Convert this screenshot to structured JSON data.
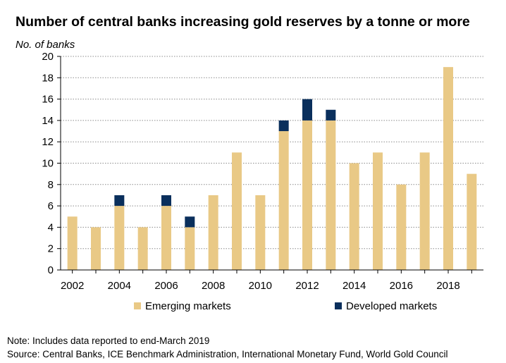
{
  "header": {
    "title": "Number of central banks increasing gold reserves by a tonne or more"
  },
  "footer": {
    "note": "Note: Includes data reported to end-March 2019",
    "source": "Source: Central Banks, ICE Benchmark Administration, International Monetary Fund, World Gold Council"
  },
  "colors": {
    "emerging": "#e9c986",
    "developed": "#0a2f5c",
    "grid": "#8c8c8c",
    "axis": "#000000"
  },
  "chart_data": {
    "type": "bar",
    "stacked": true,
    "title": "Number of central banks increasing gold reserves by a tonne or more",
    "ylabel": "No. of banks",
    "xlabel": "",
    "ylim": [
      0,
      20
    ],
    "yticks": [
      0,
      2,
      4,
      6,
      8,
      10,
      12,
      14,
      16,
      18,
      20
    ],
    "grid": "horizontal dotted",
    "legend_position": "bottom",
    "categories": [
      "2002",
      "2003",
      "2004",
      "2005",
      "2006",
      "2007",
      "2008",
      "2009",
      "2010",
      "2011",
      "2012",
      "2013",
      "2014",
      "2015",
      "2016",
      "2017",
      "2018",
      "2019"
    ],
    "xtick_labels": [
      "2002",
      "",
      "2004",
      "",
      "2006",
      "",
      "2008",
      "",
      "2010",
      "",
      "2012",
      "",
      "2014",
      "",
      "2016",
      "",
      "2018",
      ""
    ],
    "series": [
      {
        "name": "Emerging markets",
        "color": "#e9c986",
        "values": [
          5,
          4,
          6,
          4,
          6,
          4,
          7,
          11,
          7,
          13,
          14,
          14,
          10,
          11,
          8,
          11,
          19,
          9
        ]
      },
      {
        "name": "Developed markets",
        "color": "#0a2f5c",
        "values": [
          0,
          0,
          1,
          0,
          1,
          1,
          0,
          0,
          0,
          1,
          2,
          1,
          0,
          0,
          0,
          0,
          0,
          0
        ]
      }
    ]
  }
}
